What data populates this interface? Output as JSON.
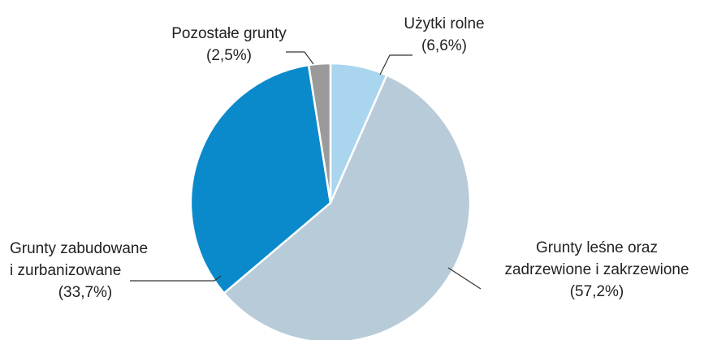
{
  "chart_data": {
    "type": "pie",
    "categories": [
      "Użytki rolne",
      "Grunty leśne oraz\nzadrzewione i zakrzewione",
      "Grunty zabudowane\ni zurbanizowane",
      "Pozostałe grunty"
    ],
    "values": [
      6.6,
      57.2,
      33.7,
      2.5
    ],
    "value_labels": [
      "(6,6%)",
      "(57,2%)",
      "(33,7%)",
      "(2,5%)"
    ],
    "colors": [
      "#a9d5ef",
      "#b8cbd9",
      "#0a8acb",
      "#9a9a9a"
    ]
  }
}
